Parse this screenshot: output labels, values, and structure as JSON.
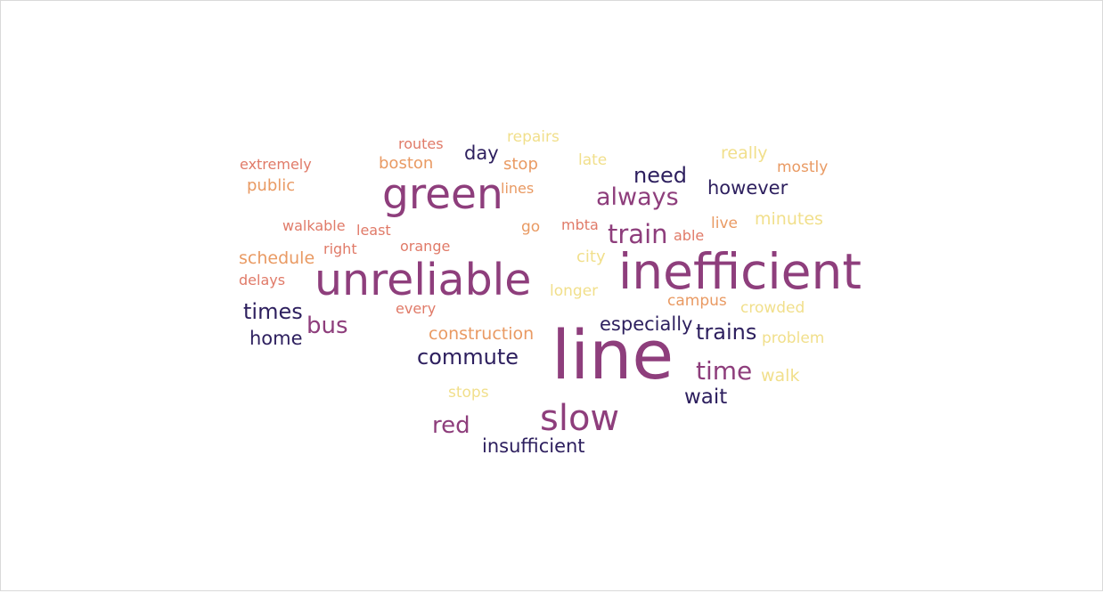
{
  "word_cloud": {
    "palette": {
      "navy": "#2d1f5e",
      "purple": "#8e3e7c",
      "coral": "#e07a68",
      "orange": "#e99a63",
      "yellow": "#f1df8b"
    },
    "words": [
      {
        "text": "line",
        "color": "#8e3e7c",
        "weight": 1.0
      },
      {
        "text": "inefficient",
        "color": "#8e3e7c",
        "weight": 0.72
      },
      {
        "text": "unreliable",
        "color": "#8e3e7c",
        "weight": 0.65
      },
      {
        "text": "green",
        "color": "#8e3e7c",
        "weight": 0.62
      },
      {
        "text": "slow",
        "color": "#8e3e7c",
        "weight": 0.52
      },
      {
        "text": "train",
        "color": "#8e3e7c",
        "weight": 0.38
      },
      {
        "text": "time",
        "color": "#8e3e7c",
        "weight": 0.37
      },
      {
        "text": "always",
        "color": "#8e3e7c",
        "weight": 0.36
      },
      {
        "text": "bus",
        "color": "#8e3e7c",
        "weight": 0.34
      },
      {
        "text": "red",
        "color": "#8e3e7c",
        "weight": 0.34
      },
      {
        "text": "need",
        "color": "#2d1f5e",
        "weight": 0.32
      },
      {
        "text": "trains",
        "color": "#2d1f5e",
        "weight": 0.31
      },
      {
        "text": "commute",
        "color": "#2d1f5e",
        "weight": 0.31
      },
      {
        "text": "times",
        "color": "#2d1f5e",
        "weight": 0.31
      },
      {
        "text": "wait",
        "color": "#2d1f5e",
        "weight": 0.3
      },
      {
        "text": "especially",
        "color": "#2d1f5e",
        "weight": 0.28
      },
      {
        "text": "however",
        "color": "#2d1f5e",
        "weight": 0.28
      },
      {
        "text": "home",
        "color": "#2d1f5e",
        "weight": 0.28
      },
      {
        "text": "insufficient",
        "color": "#2d1f5e",
        "weight": 0.28
      },
      {
        "text": "day",
        "color": "#2d1f5e",
        "weight": 0.27
      },
      {
        "text": "construction",
        "color": "#e99a63",
        "weight": 0.25
      },
      {
        "text": "schedule",
        "color": "#e99a63",
        "weight": 0.25
      },
      {
        "text": "boston",
        "color": "#e99a63",
        "weight": 0.24
      },
      {
        "text": "public",
        "color": "#e99a63",
        "weight": 0.24
      },
      {
        "text": "stop",
        "color": "#e99a63",
        "weight": 0.24
      },
      {
        "text": "mostly",
        "color": "#e99a63",
        "weight": 0.23
      },
      {
        "text": "live",
        "color": "#e99a63",
        "weight": 0.23
      },
      {
        "text": "go",
        "color": "#e99a63",
        "weight": 0.23
      },
      {
        "text": "campus",
        "color": "#e99a63",
        "weight": 0.22
      },
      {
        "text": "extremely",
        "color": "#e07a68",
        "weight": 0.21
      },
      {
        "text": "walkable",
        "color": "#e07a68",
        "weight": 0.21
      },
      {
        "text": "routes",
        "color": "#e07a68",
        "weight": 0.21
      },
      {
        "text": "orange",
        "color": "#e07a68",
        "weight": 0.21
      },
      {
        "text": "right",
        "color": "#e07a68",
        "weight": 0.21
      },
      {
        "text": "least",
        "color": "#e07a68",
        "weight": 0.21
      },
      {
        "text": "delays",
        "color": "#e07a68",
        "weight": 0.21
      },
      {
        "text": "every",
        "color": "#e07a68",
        "weight": 0.21
      },
      {
        "text": "mbta",
        "color": "#e07a68",
        "weight": 0.21
      },
      {
        "text": "able",
        "color": "#e07a68",
        "weight": 0.21
      },
      {
        "text": "lines",
        "color": "#e99a63",
        "weight": 0.21
      },
      {
        "text": "really",
        "color": "#f1df8b",
        "weight": 0.25
      },
      {
        "text": "minutes",
        "color": "#f1df8b",
        "weight": 0.25
      },
      {
        "text": "walk",
        "color": "#f1df8b",
        "weight": 0.25
      },
      {
        "text": "city",
        "color": "#f1df8b",
        "weight": 0.24
      },
      {
        "text": "longer",
        "color": "#f1df8b",
        "weight": 0.23
      },
      {
        "text": "crowded",
        "color": "#f1df8b",
        "weight": 0.23
      },
      {
        "text": "problem",
        "color": "#f1df8b",
        "weight": 0.23
      },
      {
        "text": "late",
        "color": "#f1df8b",
        "weight": 0.23
      },
      {
        "text": "repairs",
        "color": "#f1df8b",
        "weight": 0.23
      },
      {
        "text": "stops",
        "color": "#f1df8b",
        "weight": 0.22
      }
    ]
  }
}
